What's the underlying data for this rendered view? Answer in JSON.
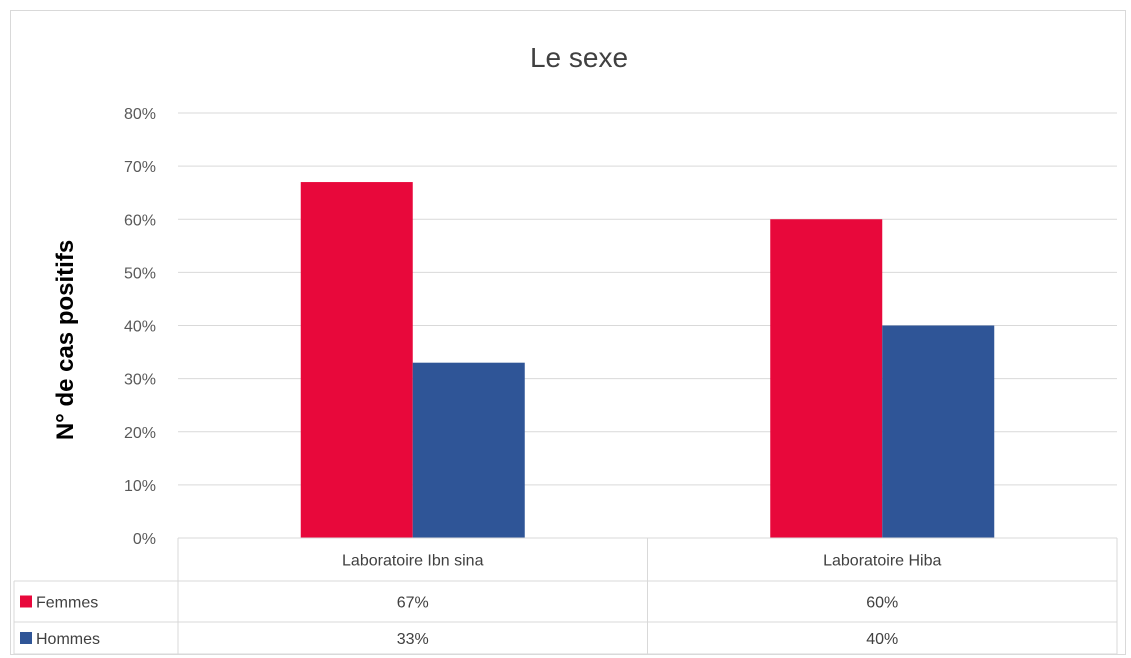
{
  "chart_data": {
    "type": "bar",
    "title": "Le sexe",
    "ylabel": "N° de cas positifs",
    "xlabel": "",
    "categories": [
      "Laboratoire Ibn sina",
      "Laboratoire Hiba"
    ],
    "series": [
      {
        "name": "Femmes",
        "values": [
          67,
          60
        ],
        "labels": [
          "67%",
          "60%"
        ],
        "color": "#e8083b"
      },
      {
        "name": "Hommes",
        "values": [
          33,
          40
        ],
        "labels": [
          "33%",
          "40%"
        ],
        "color": "#2f5597"
      }
    ],
    "ylim": [
      0,
      80
    ],
    "yticks": [
      "0%",
      "10%",
      "20%",
      "30%",
      "40%",
      "50%",
      "60%",
      "70%",
      "80%"
    ],
    "grid": true,
    "legend": "data-table-below"
  }
}
